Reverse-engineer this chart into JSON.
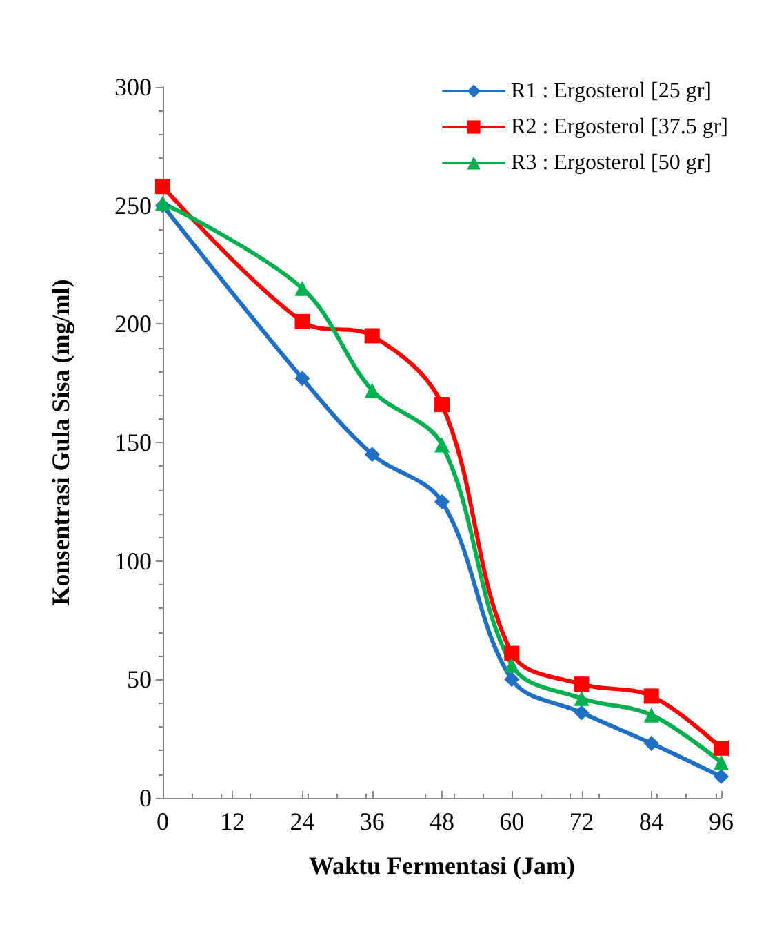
{
  "chart_data": {
    "type": "line",
    "xlabel": "Waktu Fermentasi (Jam)",
    "ylabel": "Konsentrasi Gula Sisa (mg/ml)",
    "x": [
      0,
      24,
      36,
      48,
      60,
      72,
      84,
      96
    ],
    "series": [
      {
        "name": "R1 : Ergosterol [25 gr]",
        "color": "#1f6fc4",
        "marker": "diamond",
        "values": [
          250,
          177,
          145,
          125,
          50,
          36,
          23,
          9
        ]
      },
      {
        "name": "R2 : Ergosterol [37.5 gr]",
        "color": "#ff0000",
        "marker": "square",
        "values": [
          258,
          201,
          195,
          166,
          61,
          48,
          43,
          21
        ]
      },
      {
        "name": "R3 : Ergosterol [50 gr]",
        "color": "#00b050",
        "marker": "triangle",
        "values": [
          251,
          215,
          172,
          149,
          56,
          42,
          35,
          15
        ]
      }
    ],
    "xlim": [
      0,
      96
    ],
    "xticks": [
      0,
      12,
      24,
      36,
      48,
      60,
      72,
      84,
      96
    ],
    "ylim": [
      0,
      300
    ],
    "yticks": [
      0,
      50,
      100,
      150,
      200,
      250,
      300
    ],
    "grid": false,
    "legend": "top right",
    "line_style": "solid"
  }
}
